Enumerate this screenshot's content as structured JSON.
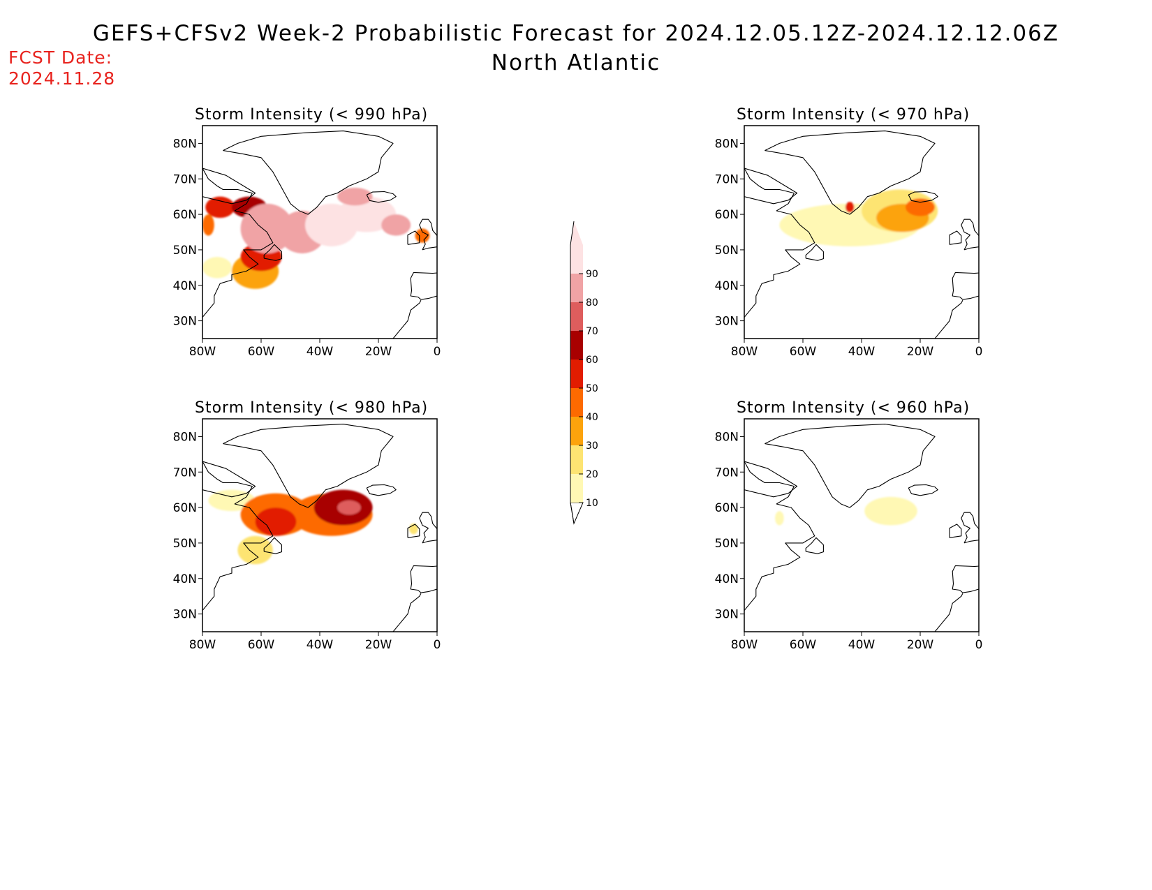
{
  "header": {
    "title_line1": "GEFS+CFSv2 Week-2 Probabilistic Forecast for 2024.12.05.12Z-2024.12.12.06Z",
    "title_line2": "North Atlantic",
    "fcst_label": "FCST Date:",
    "fcst_date": "2024.11.28"
  },
  "axes": {
    "lat_labels": [
      "80N",
      "70N",
      "60N",
      "50N",
      "40N",
      "30N"
    ],
    "lat_values": [
      80,
      70,
      60,
      50,
      40,
      30
    ],
    "lon_labels": [
      "80W",
      "60W",
      "40W",
      "20W",
      "0"
    ],
    "lon_values": [
      -80,
      -60,
      -40,
      -20,
      0
    ],
    "lon_range": [
      -80,
      0
    ],
    "lat_range": [
      25,
      85
    ]
  },
  "colorbar": {
    "levels": [
      10,
      20,
      30,
      40,
      50,
      60,
      70,
      80,
      90
    ],
    "colors": [
      "#fff8b4",
      "#fde472",
      "#fca30c",
      "#fd6a00",
      "#e21c00",
      "#a80000",
      "#de5d5d",
      "#f0a3a5",
      "#fde2e3"
    ],
    "under_color": "#ffffff"
  },
  "panels": [
    {
      "id": "p990",
      "title": "Storm Intensity (< 990 hPa)",
      "blobs": [
        {
          "lon": -75,
          "lat": 45,
          "rx": 5,
          "ry": 3,
          "v": 10
        },
        {
          "lon": -62,
          "lat": 44,
          "rx": 8,
          "ry": 5,
          "v": 30
        },
        {
          "lon": -60,
          "lat": 48,
          "rx": 7,
          "ry": 4,
          "v": 50
        },
        {
          "lon": -74,
          "lat": 62,
          "rx": 5,
          "ry": 3,
          "v": 50
        },
        {
          "lon": -78,
          "lat": 57,
          "rx": 2,
          "ry": 3,
          "v": 40
        },
        {
          "lon": -64,
          "lat": 62,
          "rx": 6,
          "ry": 3,
          "v": 60
        },
        {
          "lon": -58,
          "lat": 56,
          "rx": 9,
          "ry": 7,
          "v": 80
        },
        {
          "lon": -46,
          "lat": 55,
          "rx": 8,
          "ry": 6,
          "v": 80
        },
        {
          "lon": -36,
          "lat": 57,
          "rx": 9,
          "ry": 6,
          "v": 90
        },
        {
          "lon": -24,
          "lat": 60,
          "rx": 10,
          "ry": 5,
          "v": 90
        },
        {
          "lon": -28,
          "lat": 65,
          "rx": 6,
          "ry": 2.5,
          "v": 80
        },
        {
          "lon": -14,
          "lat": 57,
          "rx": 5,
          "ry": 3,
          "v": 80
        },
        {
          "lon": -5,
          "lat": 54,
          "rx": 2.5,
          "ry": 2,
          "v": 40
        }
      ]
    },
    {
      "id": "p970",
      "title": "Storm Intensity (< 970 hPa)",
      "blobs": [
        {
          "lon": -44,
          "lat": 57,
          "rx": 24,
          "ry": 6,
          "v": 10
        },
        {
          "lon": -27,
          "lat": 61,
          "rx": 13,
          "ry": 6,
          "v": 20
        },
        {
          "lon": -26,
          "lat": 59,
          "rx": 9,
          "ry": 4,
          "v": 30
        },
        {
          "lon": -20,
          "lat": 62,
          "rx": 5,
          "ry": 2.5,
          "v": 40
        },
        {
          "lon": -44,
          "lat": 62,
          "rx": 1.5,
          "ry": 1.5,
          "v": 50
        }
      ]
    },
    {
      "id": "p980",
      "title": "Storm Intensity (< 980 hPa)",
      "blobs": [
        {
          "lon": -70,
          "lat": 62,
          "rx": 8,
          "ry": 3,
          "v": 10
        },
        {
          "lon": -62,
          "lat": 48,
          "rx": 6,
          "ry": 4,
          "v": 20
        },
        {
          "lon": -55,
          "lat": 58,
          "rx": 12,
          "ry": 6,
          "v": 40
        },
        {
          "lon": -36,
          "lat": 58,
          "rx": 14,
          "ry": 6,
          "v": 40
        },
        {
          "lon": -55,
          "lat": 56,
          "rx": 7,
          "ry": 4,
          "v": 50
        },
        {
          "lon": -32,
          "lat": 60,
          "rx": 10,
          "ry": 5,
          "v": 60
        },
        {
          "lon": -30,
          "lat": 60,
          "rx": 4,
          "ry": 2,
          "v": 70
        },
        {
          "lon": -8,
          "lat": 54,
          "rx": 1.5,
          "ry": 1.5,
          "v": 20
        }
      ]
    },
    {
      "id": "p960",
      "title": "Storm Intensity (< 960 hPa)",
      "blobs": [
        {
          "lon": -30,
          "lat": 59,
          "rx": 9,
          "ry": 4,
          "v": 10
        },
        {
          "lon": -68,
          "lat": 57,
          "rx": 1.5,
          "ry": 2,
          "v": 10
        }
      ]
    }
  ]
}
